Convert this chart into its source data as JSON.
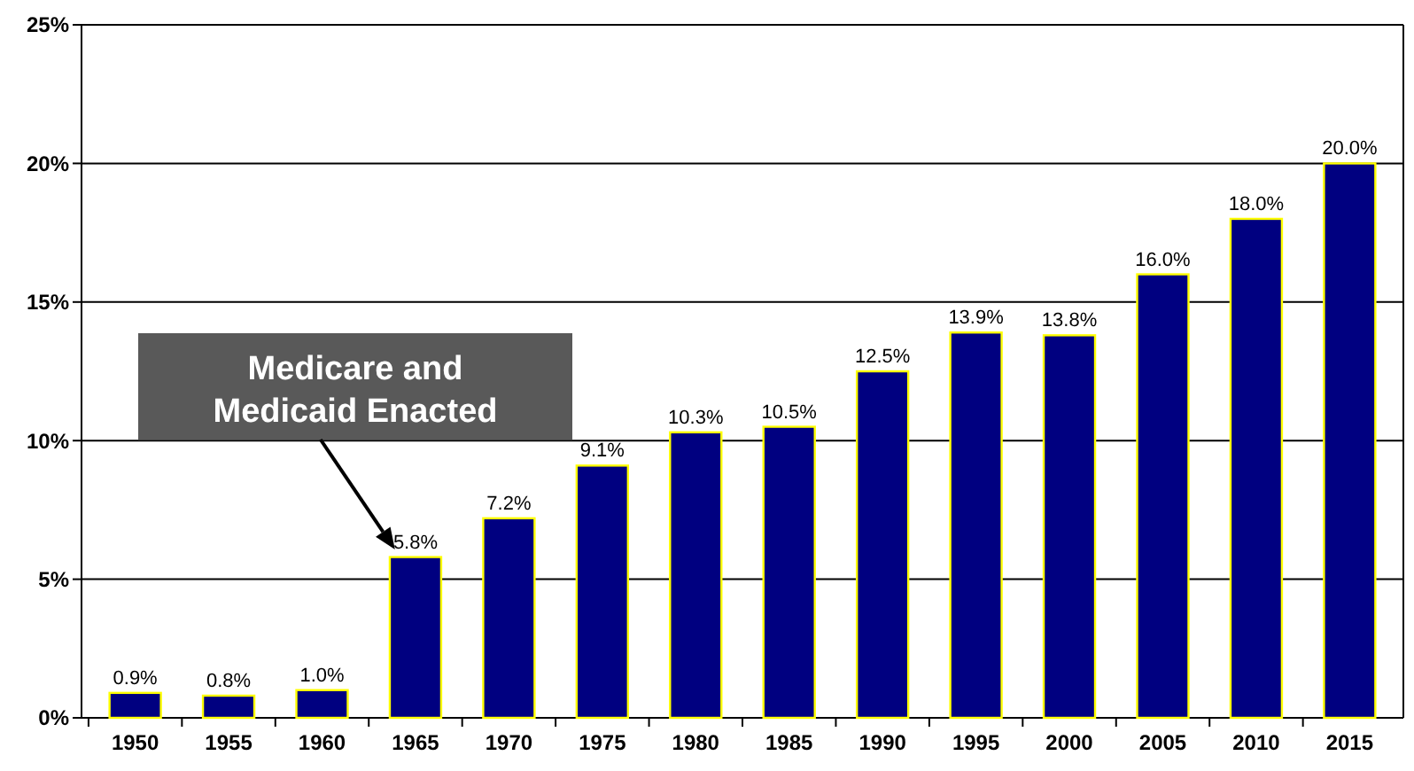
{
  "chart_data": {
    "type": "bar",
    "categories": [
      "1950",
      "1955",
      "1960",
      "1965",
      "1970",
      "1975",
      "1980",
      "1985",
      "1990",
      "1995",
      "2000",
      "2005",
      "2010",
      "2015"
    ],
    "values": [
      0.9,
      0.8,
      1.0,
      5.8,
      7.2,
      9.1,
      10.3,
      10.5,
      12.5,
      13.9,
      13.8,
      16.0,
      18.0,
      20.0
    ],
    "value_labels": [
      "0.9%",
      "0.8%",
      "1.0%",
      "5.8%",
      "7.2%",
      "9.1%",
      "10.3%",
      "10.5%",
      "12.5%",
      "13.9%",
      "13.8%",
      "16.0%",
      "18.0%",
      "20.0%"
    ],
    "color": "#000080",
    "ylim": [
      0,
      25
    ],
    "yticks": [
      {
        "value": 0,
        "label": "0%"
      },
      {
        "value": 5,
        "label": "5%"
      },
      {
        "value": 10,
        "label": "10%"
      },
      {
        "value": 15,
        "label": "15%"
      },
      {
        "value": 20,
        "label": "20%"
      },
      {
        "value": 25,
        "label": "25%"
      }
    ],
    "grid": "y",
    "annotations": [
      "Medicare and Medicaid Enacted"
    ]
  }
}
